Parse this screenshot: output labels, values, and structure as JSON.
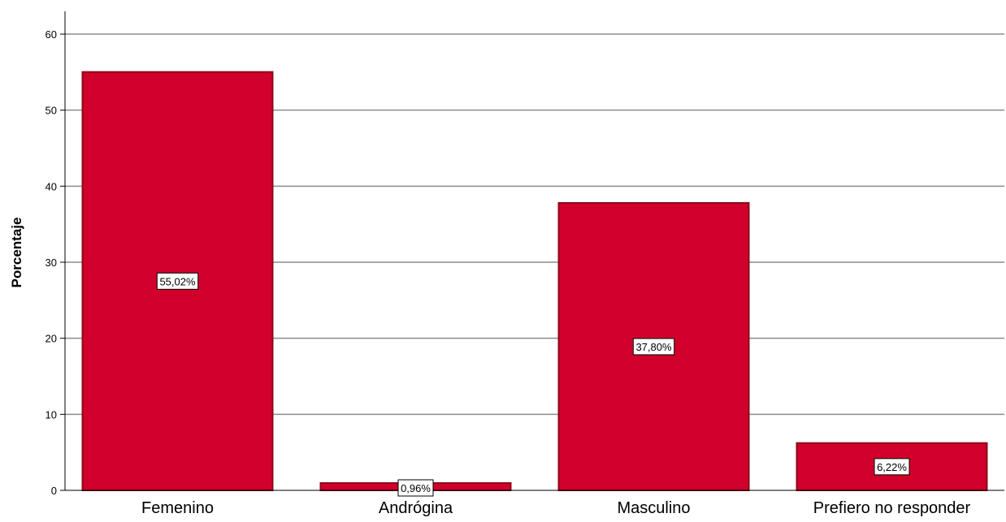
{
  "chart_data": {
    "type": "bar",
    "categories": [
      "Femenino",
      "Andrógina",
      "Masculino",
      "Prefiero no responder"
    ],
    "values": [
      55.02,
      0.96,
      37.8,
      6.22
    ],
    "data_labels": [
      "55,02%",
      "0,96%",
      "37,80%",
      "6,22%"
    ],
    "title": "",
    "xlabel": "",
    "ylabel": "Porcentaje",
    "ylim": [
      0,
      60
    ],
    "yticks": [
      0,
      10,
      20,
      30,
      40,
      50,
      60
    ],
    "grid": true,
    "colors": {
      "bar_fill": "#D0002B",
      "bar_stroke": "#8B0A1A",
      "grid": "#8C8C8C",
      "axis": "#000000"
    }
  }
}
